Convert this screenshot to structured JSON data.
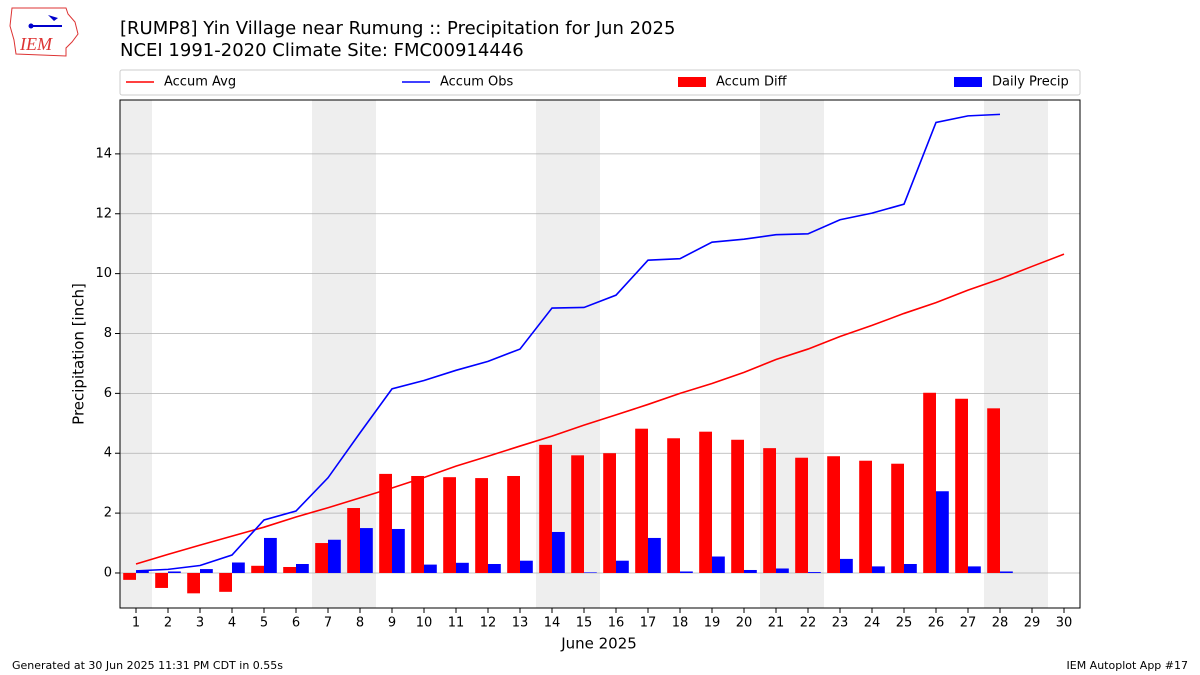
{
  "logo_text": "IEM",
  "footer_left": "Generated at 30 Jun 2025 11:31 PM CDT in 0.55s",
  "footer_right": "IEM Autoplot App #17",
  "chart_data": {
    "type": "bar",
    "title": "[RUMP8] Yin Village near Rumung :: Precipitation for Jun 2025",
    "subtitle": "NCEI 1991-2020 Climate Site: FMC00914446",
    "xlabel": "June 2025",
    "ylabel": "Precipitation [inch]",
    "x": [
      1,
      2,
      3,
      4,
      5,
      6,
      7,
      8,
      9,
      10,
      11,
      12,
      13,
      14,
      15,
      16,
      17,
      18,
      19,
      20,
      21,
      22,
      23,
      24,
      25,
      26,
      27,
      28,
      29,
      30
    ],
    "xlim": [
      0.5,
      30.5
    ],
    "xticks": [
      1,
      2,
      3,
      4,
      5,
      6,
      7,
      8,
      9,
      10,
      11,
      12,
      13,
      14,
      15,
      16,
      17,
      18,
      19,
      20,
      21,
      22,
      23,
      24,
      25,
      26,
      27,
      28,
      29,
      30
    ],
    "ylim": [
      -1.17,
      15.8
    ],
    "yticks": [
      0,
      2,
      4,
      6,
      8,
      10,
      12,
      14
    ],
    "grid": true,
    "legend": "top",
    "weekend_days": [
      1,
      7,
      8,
      14,
      15,
      21,
      22,
      28,
      29
    ],
    "series": [
      {
        "name": "Accum Avg",
        "mark": "line",
        "color": "#ff0000",
        "values": [
          0.3,
          0.62,
          0.93,
          1.23,
          1.53,
          1.87,
          2.18,
          2.51,
          2.84,
          3.19,
          3.57,
          3.9,
          4.24,
          4.57,
          4.94,
          5.28,
          5.63,
          6.0,
          6.33,
          6.7,
          7.13,
          7.48,
          7.9,
          8.27,
          8.67,
          9.03,
          9.45,
          9.82,
          10.24,
          10.65
        ]
      },
      {
        "name": "Accum Obs",
        "mark": "line",
        "color": "#0000ff",
        "values": [
          0.07,
          0.12,
          0.25,
          0.6,
          1.77,
          2.07,
          3.18,
          4.68,
          6.15,
          6.43,
          6.77,
          7.07,
          7.48,
          8.85,
          8.87,
          9.28,
          10.45,
          10.5,
          11.05,
          11.15,
          11.3,
          11.33,
          11.8,
          12.02,
          12.32,
          15.05,
          15.27,
          15.32,
          null,
          null
        ]
      },
      {
        "name": "Accum Diff",
        "mark": "bar",
        "color": "#ff0000",
        "values": [
          -0.23,
          -0.5,
          -0.68,
          -0.63,
          0.24,
          0.2,
          1.0,
          2.17,
          3.31,
          3.24,
          3.2,
          3.17,
          3.24,
          4.28,
          3.93,
          4.0,
          4.82,
          4.5,
          4.72,
          4.45,
          4.17,
          3.85,
          3.9,
          3.75,
          3.65,
          6.02,
          5.82,
          5.5,
          null,
          null
        ]
      },
      {
        "name": "Daily Precip",
        "mark": "bar",
        "color": "#0000ff",
        "values": [
          0.07,
          0.05,
          0.13,
          0.35,
          1.17,
          0.3,
          1.11,
          1.5,
          1.47,
          0.28,
          0.34,
          0.3,
          0.41,
          1.37,
          0.02,
          0.41,
          1.17,
          0.05,
          0.55,
          0.1,
          0.15,
          0.03,
          0.47,
          0.22,
          0.3,
          2.73,
          0.22,
          0.05,
          null,
          null
        ]
      }
    ]
  }
}
